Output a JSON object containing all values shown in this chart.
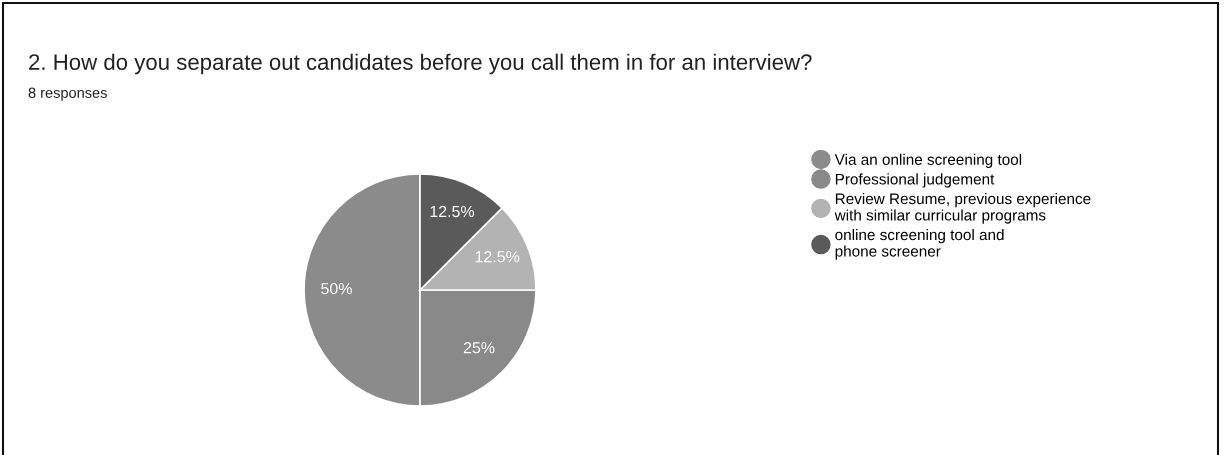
{
  "chart_data": {
    "type": "pie",
    "title": "2. How do you separate out candidates before you call them in for an interview?",
    "subtitle": "8 responses",
    "categories": [
      "Via an online screening tool",
      "Professional judgement",
      "Review Resume, previous experience\nwith similar curricular programs",
      "online screening tool and\nphone screener"
    ],
    "values": [
      50,
      25,
      12.5,
      12.5
    ],
    "colors": [
      "#8b8b8b",
      "#898989",
      "#b3b3b3",
      "#5a5a5a"
    ],
    "value_labels": [
      "50%",
      "25%",
      "12.5%",
      "12.5%"
    ],
    "legend": "right"
  }
}
